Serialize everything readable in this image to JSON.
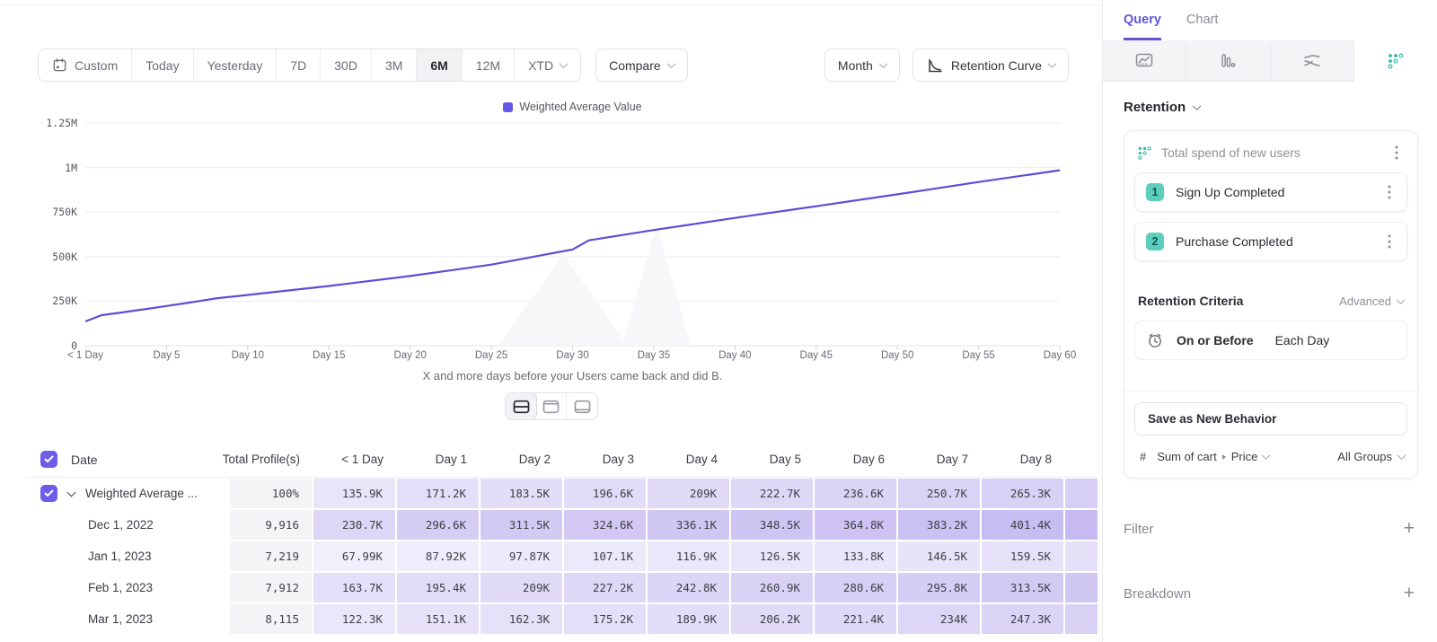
{
  "colors": {
    "accent_purple": "#6156d6",
    "line_purple": "#5b4fd6",
    "legend_purple": "#6658e8",
    "checkbox_purple": "#6d5ce8",
    "teal": "#2fb9a8",
    "heat_light": "#f2f0fc",
    "heat_dark": "#c8bcf1"
  },
  "toolbar": {
    "ranges": [
      "Custom",
      "Today",
      "Yesterday",
      "7D",
      "30D",
      "3M",
      "6M",
      "12M",
      "XTD"
    ],
    "active_range": "6M",
    "compare_label": "Compare",
    "granularity_label": "Month",
    "chart_type_label": "Retention Curve"
  },
  "chart": {
    "legend": "Weighted Average Value",
    "caption": "X and more days before your Users came back and did B.",
    "y_ticks": [
      {
        "v": 0,
        "label": "0"
      },
      {
        "v": 250000,
        "label": "250K"
      },
      {
        "v": 500000,
        "label": "500K"
      },
      {
        "v": 750000,
        "label": "750K"
      },
      {
        "v": 1000000,
        "label": "1M"
      },
      {
        "v": 1250000,
        "label": "1.25M"
      }
    ],
    "x_ticks": [
      {
        "day": 0,
        "label": "< 1 Day"
      },
      {
        "day": 5,
        "label": "Day 5"
      },
      {
        "day": 10,
        "label": "Day 10"
      },
      {
        "day": 15,
        "label": "Day 15"
      },
      {
        "day": 20,
        "label": "Day 20"
      },
      {
        "day": 25,
        "label": "Day 25"
      },
      {
        "day": 30,
        "label": "Day 30"
      },
      {
        "day": 35,
        "label": "Day 35"
      },
      {
        "day": 40,
        "label": "Day 40"
      },
      {
        "day": 45,
        "label": "Day 45"
      },
      {
        "day": 50,
        "label": "Day 50"
      },
      {
        "day": 55,
        "label": "Day 55"
      },
      {
        "day": 60,
        "label": "Day 60"
      }
    ]
  },
  "chart_data": {
    "type": "line",
    "title": "",
    "xlabel": "X and more days before your Users came back and did B.",
    "ylabel": "",
    "ylim": [
      0,
      1250000
    ],
    "x_range_days": [
      0,
      60
    ],
    "grid": true,
    "legend_position": "top-center",
    "series": [
      {
        "name": "Weighted Average Value",
        "color": "#5b4fd6",
        "points": [
          [
            0,
            135900
          ],
          [
            1,
            171200
          ],
          [
            2,
            183500
          ],
          [
            3,
            196600
          ],
          [
            4,
            209000
          ],
          [
            5,
            222700
          ],
          [
            6,
            236600
          ],
          [
            7,
            250700
          ],
          [
            8,
            265300
          ],
          [
            10,
            285000
          ],
          [
            15,
            335000
          ],
          [
            20,
            391000
          ],
          [
            25,
            455000
          ],
          [
            30,
            540000
          ],
          [
            31,
            591000
          ],
          [
            35,
            649000
          ],
          [
            40,
            717000
          ],
          [
            45,
            783000
          ],
          [
            50,
            850000
          ],
          [
            55,
            919000
          ],
          [
            60,
            985000
          ]
        ]
      }
    ]
  },
  "view_toggles": [
    "split-view",
    "chart-view",
    "table-view"
  ],
  "active_view_toggle": "split-view",
  "table": {
    "columns": [
      "Date",
      "Total Profile(s)",
      "< 1 Day",
      "Day 1",
      "Day 2",
      "Day 3",
      "Day 4",
      "Day 5",
      "Day 6",
      "Day 7",
      "Day 8"
    ],
    "header_checkbox_checked": true,
    "rows": [
      {
        "label": "Weighted Average ...",
        "type": "summary",
        "checked": true,
        "total": "100%",
        "values": [
          "135.9K",
          "171.2K",
          "183.5K",
          "196.6K",
          "209K",
          "222.7K",
          "236.6K",
          "250.7K",
          "265.3K"
        ]
      },
      {
        "label": "Dec 1, 2022",
        "type": "date",
        "total": "9,916",
        "values": [
          "230.7K",
          "296.6K",
          "311.5K",
          "324.6K",
          "336.1K",
          "348.5K",
          "364.8K",
          "383.2K",
          "401.4K"
        ]
      },
      {
        "label": "Jan 1, 2023",
        "type": "date",
        "total": "7,219",
        "values": [
          "67.99K",
          "87.92K",
          "97.87K",
          "107.1K",
          "116.9K",
          "126.5K",
          "133.8K",
          "146.5K",
          "159.5K"
        ]
      },
      {
        "label": "Feb 1, 2023",
        "type": "date",
        "total": "7,912",
        "values": [
          "163.7K",
          "195.4K",
          "209K",
          "227.2K",
          "242.8K",
          "260.9K",
          "280.6K",
          "295.8K",
          "313.5K"
        ]
      },
      {
        "label": "Mar 1, 2023",
        "type": "date",
        "total": "8,115",
        "values": [
          "122.3K",
          "151.1K",
          "162.3K",
          "175.2K",
          "189.9K",
          "206.2K",
          "221.4K",
          "234K",
          "247.3K"
        ]
      }
    ]
  },
  "panel": {
    "tabs": [
      "Query",
      "Chart"
    ],
    "active_tab": "Query",
    "icon_tabs": [
      "insights-chart",
      "bar-chart",
      "flow",
      "retention"
    ],
    "active_icon_tab": "retention",
    "section_label": "Retention",
    "behavior": {
      "title": "Total spend of new users",
      "steps": [
        {
          "num": "1",
          "label": "Sign Up Completed"
        },
        {
          "num": "2",
          "label": "Purchase Completed"
        }
      ],
      "criteria_label": "Retention Criteria",
      "criteria_mode": "Advanced",
      "timing": {
        "condition": "On or Before",
        "window": "Each Day"
      },
      "save_button": "Save as New Behavior",
      "measure": {
        "prefix": "#",
        "label": "Sum of cart",
        "property": "Price",
        "group": "All Groups"
      }
    },
    "filter_label": "Filter",
    "breakdown_label": "Breakdown"
  }
}
